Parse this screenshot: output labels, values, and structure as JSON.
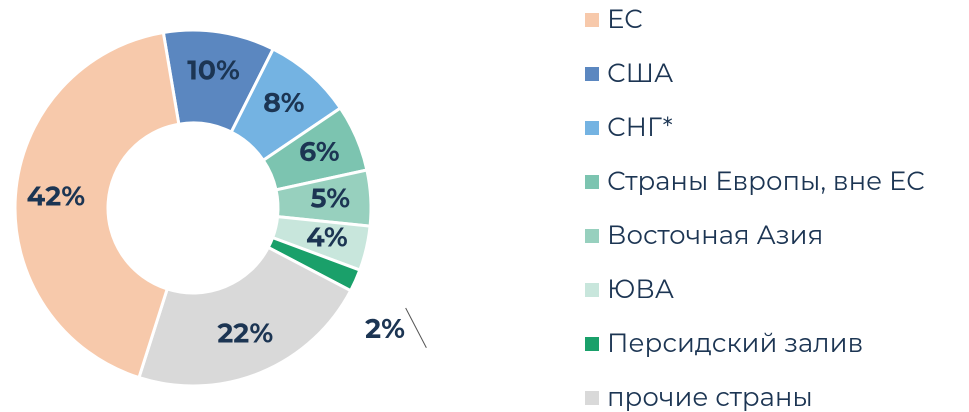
{
  "chart_data": {
    "type": "pie",
    "donut": true,
    "categories": [
      "ЕС",
      "США",
      "СНГ*",
      "Страны Европы, вне ЕС",
      "Восточная Азия",
      "ЮВА",
      "Персидский залив",
      "прочие страны"
    ],
    "values": [
      42,
      10,
      8,
      6,
      5,
      4,
      2,
      22
    ],
    "value_labels": [
      "42%",
      "10%",
      "8%",
      "6%",
      "5%",
      "4%",
      "2%",
      "22%"
    ],
    "colors": [
      "#f7c9ab",
      "#5b87c0",
      "#74b3e2",
      "#7cc4b0",
      "#97d0be",
      "#c8e6dc",
      "#1aa06a",
      "#d9d9d9"
    ],
    "legend": "right"
  }
}
